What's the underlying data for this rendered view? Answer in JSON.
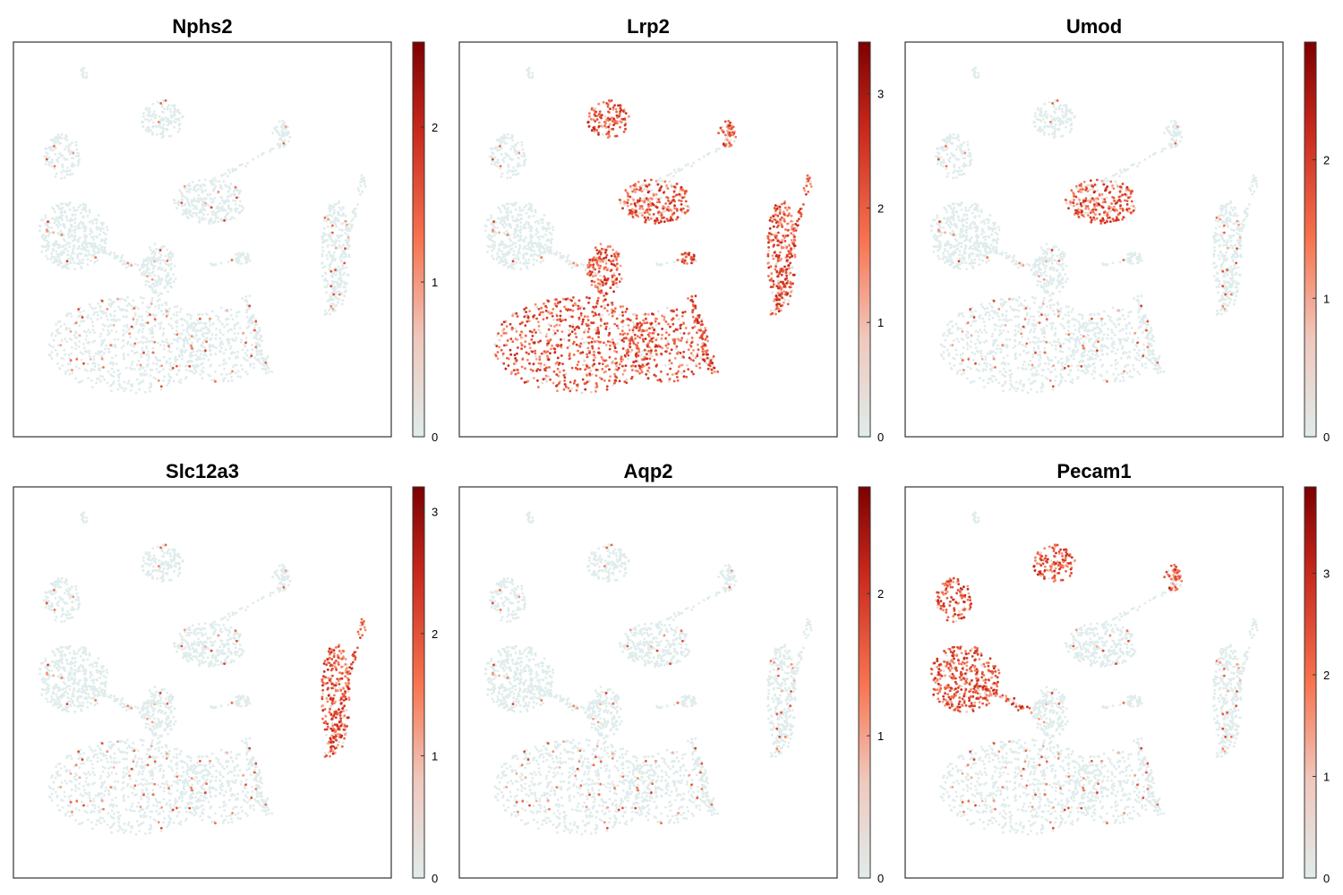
{
  "figure": {
    "colormap": {
      "low": "#dfeceb",
      "mid1": "#f4b4a4",
      "mid2": "#f8734f",
      "high": "#7d0000"
    }
  },
  "chart_data": [
    {
      "type": "scatter",
      "title": "Nphs2",
      "cbar_range": [
        0,
        2.55
      ],
      "cbar_ticks": [
        0,
        1,
        2
      ],
      "hotspot": "none"
    },
    {
      "type": "scatter",
      "title": "Lrp2",
      "cbar_range": [
        0,
        3.45
      ],
      "cbar_ticks": [
        0,
        1,
        2,
        3
      ],
      "hotspot": "proximal"
    },
    {
      "type": "scatter",
      "title": "Umod",
      "cbar_range": [
        0,
        2.85
      ],
      "cbar_ticks": [
        0,
        1,
        2
      ],
      "hotspot": "loop"
    },
    {
      "type": "scatter",
      "title": "Slc12a3",
      "cbar_range": [
        0,
        3.2
      ],
      "cbar_ticks": [
        0,
        1,
        2,
        3
      ],
      "hotspot": "distal"
    },
    {
      "type": "scatter",
      "title": "Aqp2",
      "cbar_range": [
        0,
        2.75
      ],
      "cbar_ticks": [
        0,
        1,
        2
      ],
      "hotspot": "none"
    },
    {
      "type": "scatter",
      "title": "Pecam1",
      "cbar_range": [
        0,
        3.85
      ],
      "cbar_ticks": [
        0,
        1,
        2,
        3
      ],
      "hotspot": "endothelial"
    }
  ]
}
